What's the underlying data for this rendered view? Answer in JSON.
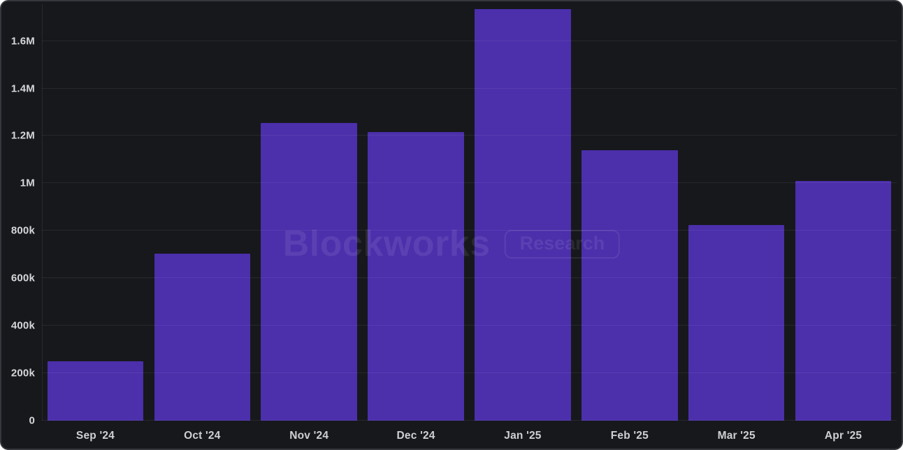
{
  "watermark": {
    "brand": "Blockworks",
    "badge": "Research"
  },
  "colors": {
    "bar": "#4B2FAB",
    "card_background": "#17181C",
    "card_border": "#36373D",
    "grid_line": "rgba(255,255,255,0.07)",
    "tick_label": "#D6D7D9",
    "watermark": "rgba(255,255,255,0.085)"
  },
  "chart_data": {
    "type": "bar",
    "title": "",
    "xlabel": "",
    "ylabel": "",
    "categories": [
      "Sep '24",
      "Oct '24",
      "Nov '24",
      "Dec '24",
      "Jan '25",
      "Feb '25",
      "Mar '25",
      "Apr '25"
    ],
    "values": [
      250000,
      705000,
      1255000,
      1215000,
      1735000,
      1140000,
      825000,
      1010000
    ],
    "ylim": [
      0,
      1755000
    ],
    "grid": true,
    "legend": false,
    "bar_width_fraction": 0.9,
    "y_ticks": [
      {
        "value": 0,
        "label": "0"
      },
      {
        "value": 200000,
        "label": "200k"
      },
      {
        "value": 400000,
        "label": "400k"
      },
      {
        "value": 600000,
        "label": "600k"
      },
      {
        "value": 800000,
        "label": "800k"
      },
      {
        "value": 1000000,
        "label": "1M"
      },
      {
        "value": 1200000,
        "label": "1.2M"
      },
      {
        "value": 1400000,
        "label": "1.4M"
      },
      {
        "value": 1600000,
        "label": "1.6M"
      }
    ]
  }
}
